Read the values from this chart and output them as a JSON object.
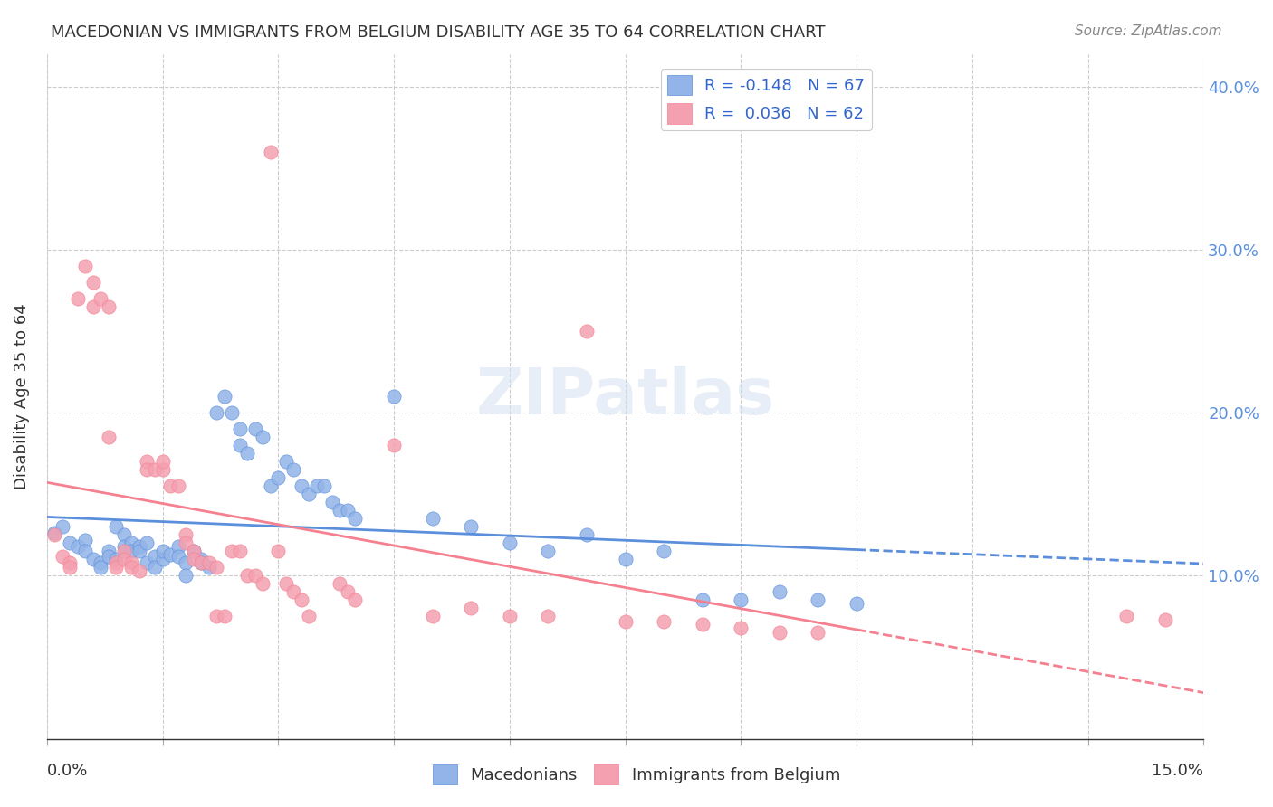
{
  "title": "MACEDONIAN VS IMMIGRANTS FROM BELGIUM DISABILITY AGE 35 TO 64 CORRELATION CHART",
  "source": "Source: ZipAtlas.com",
  "ylabel": "Disability Age 35 to 64",
  "xlim": [
    0.0,
    0.15
  ],
  "ylim": [
    0.0,
    0.42
  ],
  "legend_macedonians": "R = -0.148   N = 67",
  "legend_belgium": "R =  0.036   N = 62",
  "macedonian_color": "#92b4e8",
  "belgium_color": "#f4a0b0",
  "trend_mac_color": "#5b8fdc",
  "trend_bel_color": "#f48090",
  "watermark": "ZIPatlas",
  "ytick_vals": [
    0.1,
    0.2,
    0.3,
    0.4
  ],
  "ytick_labels": [
    "10.0%",
    "20.0%",
    "30.0%",
    "40.0%"
  ],
  "mac_points": [
    [
      0.001,
      0.126
    ],
    [
      0.002,
      0.13
    ],
    [
      0.003,
      0.12
    ],
    [
      0.004,
      0.118
    ],
    [
      0.005,
      0.122
    ],
    [
      0.005,
      0.115
    ],
    [
      0.006,
      0.11
    ],
    [
      0.007,
      0.108
    ],
    [
      0.007,
      0.105
    ],
    [
      0.008,
      0.115
    ],
    [
      0.008,
      0.112
    ],
    [
      0.009,
      0.11
    ],
    [
      0.009,
      0.13
    ],
    [
      0.01,
      0.125
    ],
    [
      0.01,
      0.118
    ],
    [
      0.011,
      0.12
    ],
    [
      0.011,
      0.115
    ],
    [
      0.012,
      0.118
    ],
    [
      0.012,
      0.115
    ],
    [
      0.013,
      0.12
    ],
    [
      0.013,
      0.108
    ],
    [
      0.014,
      0.112
    ],
    [
      0.014,
      0.105
    ],
    [
      0.015,
      0.11
    ],
    [
      0.015,
      0.115
    ],
    [
      0.016,
      0.113
    ],
    [
      0.017,
      0.118
    ],
    [
      0.017,
      0.112
    ],
    [
      0.018,
      0.108
    ],
    [
      0.018,
      0.1
    ],
    [
      0.019,
      0.115
    ],
    [
      0.02,
      0.11
    ],
    [
      0.02,
      0.108
    ],
    [
      0.021,
      0.105
    ],
    [
      0.022,
      0.2
    ],
    [
      0.023,
      0.21
    ],
    [
      0.024,
      0.2
    ],
    [
      0.025,
      0.19
    ],
    [
      0.025,
      0.18
    ],
    [
      0.026,
      0.175
    ],
    [
      0.027,
      0.19
    ],
    [
      0.028,
      0.185
    ],
    [
      0.029,
      0.155
    ],
    [
      0.03,
      0.16
    ],
    [
      0.031,
      0.17
    ],
    [
      0.032,
      0.165
    ],
    [
      0.033,
      0.155
    ],
    [
      0.034,
      0.15
    ],
    [
      0.035,
      0.155
    ],
    [
      0.036,
      0.155
    ],
    [
      0.037,
      0.145
    ],
    [
      0.038,
      0.14
    ],
    [
      0.039,
      0.14
    ],
    [
      0.04,
      0.135
    ],
    [
      0.045,
      0.21
    ],
    [
      0.05,
      0.135
    ],
    [
      0.055,
      0.13
    ],
    [
      0.06,
      0.12
    ],
    [
      0.065,
      0.115
    ],
    [
      0.07,
      0.125
    ],
    [
      0.075,
      0.11
    ],
    [
      0.08,
      0.115
    ],
    [
      0.085,
      0.085
    ],
    [
      0.09,
      0.085
    ],
    [
      0.095,
      0.09
    ],
    [
      0.1,
      0.085
    ],
    [
      0.105,
      0.083
    ]
  ],
  "bel_points": [
    [
      0.001,
      0.125
    ],
    [
      0.002,
      0.112
    ],
    [
      0.003,
      0.108
    ],
    [
      0.003,
      0.105
    ],
    [
      0.004,
      0.27
    ],
    [
      0.005,
      0.29
    ],
    [
      0.006,
      0.28
    ],
    [
      0.006,
      0.265
    ],
    [
      0.007,
      0.27
    ],
    [
      0.008,
      0.265
    ],
    [
      0.008,
      0.185
    ],
    [
      0.009,
      0.108
    ],
    [
      0.009,
      0.105
    ],
    [
      0.01,
      0.115
    ],
    [
      0.01,
      0.11
    ],
    [
      0.011,
      0.108
    ],
    [
      0.011,
      0.105
    ],
    [
      0.012,
      0.103
    ],
    [
      0.013,
      0.17
    ],
    [
      0.013,
      0.165
    ],
    [
      0.014,
      0.165
    ],
    [
      0.015,
      0.165
    ],
    [
      0.015,
      0.17
    ],
    [
      0.016,
      0.155
    ],
    [
      0.017,
      0.155
    ],
    [
      0.018,
      0.125
    ],
    [
      0.018,
      0.12
    ],
    [
      0.019,
      0.115
    ],
    [
      0.019,
      0.11
    ],
    [
      0.02,
      0.108
    ],
    [
      0.021,
      0.108
    ],
    [
      0.022,
      0.105
    ],
    [
      0.022,
      0.075
    ],
    [
      0.023,
      0.075
    ],
    [
      0.024,
      0.115
    ],
    [
      0.025,
      0.115
    ],
    [
      0.026,
      0.1
    ],
    [
      0.027,
      0.1
    ],
    [
      0.028,
      0.095
    ],
    [
      0.029,
      0.36
    ],
    [
      0.03,
      0.115
    ],
    [
      0.031,
      0.095
    ],
    [
      0.032,
      0.09
    ],
    [
      0.033,
      0.085
    ],
    [
      0.034,
      0.075
    ],
    [
      0.038,
      0.095
    ],
    [
      0.039,
      0.09
    ],
    [
      0.04,
      0.085
    ],
    [
      0.045,
      0.18
    ],
    [
      0.05,
      0.075
    ],
    [
      0.055,
      0.08
    ],
    [
      0.06,
      0.075
    ],
    [
      0.065,
      0.075
    ],
    [
      0.07,
      0.25
    ],
    [
      0.075,
      0.072
    ],
    [
      0.08,
      0.072
    ],
    [
      0.085,
      0.07
    ],
    [
      0.09,
      0.068
    ],
    [
      0.095,
      0.065
    ],
    [
      0.1,
      0.065
    ],
    [
      0.14,
      0.075
    ],
    [
      0.145,
      0.073
    ]
  ]
}
